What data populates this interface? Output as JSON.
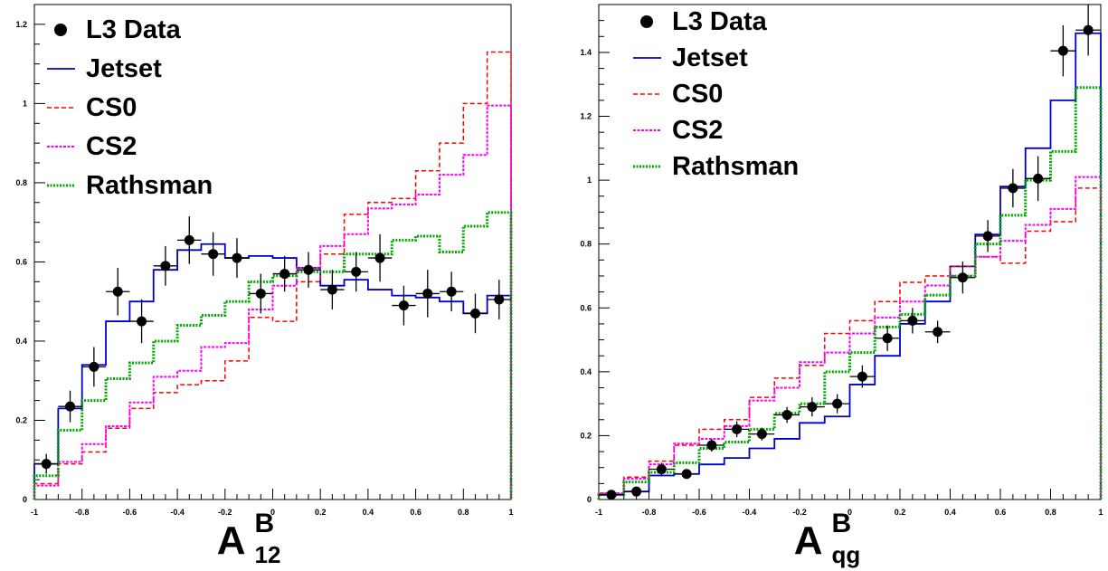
{
  "legend_names": {
    "data": "L3 Data",
    "jetset": "Jetset",
    "cs0": "CS0",
    "cs2": "CS2",
    "rathsman": "Rathsman"
  },
  "styles": {
    "data": "#000000",
    "jetset": "#0000cc",
    "cs0": "#ff0000",
    "cs2": "#ff00ff",
    "rathsman": "#00aa00"
  },
  "chart_data": [
    {
      "type": "line",
      "title": "",
      "xlabel": {
        "main": "A",
        "sup": "B",
        "sub": "12"
      },
      "xlim": [
        -1,
        1
      ],
      "ylim": [
        0,
        1.25
      ],
      "x_ticks": [
        -1,
        -0.8,
        -0.6,
        -0.4,
        -0.2,
        0,
        0.2,
        0.4,
        0.6,
        0.8,
        1
      ],
      "x_tick_labels": [
        "-1",
        "-0.8",
        "-0.6",
        "-0.4",
        "-0.2",
        "0",
        "0.2",
        "0.4",
        "0.6",
        "0.8",
        "1"
      ],
      "y_ticks": [
        0,
        0.2,
        0.4,
        0.6,
        0.8,
        1,
        1.2
      ],
      "y_tick_labels": [
        "0",
        "0.2",
        "0.4",
        "0.6",
        "0.8",
        "1",
        "1.2"
      ],
      "legend_position": "top-left",
      "bin_edges": [
        -1,
        -0.9,
        -0.8,
        -0.7,
        -0.6,
        -0.5,
        -0.4,
        -0.3,
        -0.2,
        -0.1,
        0,
        0.1,
        0.2,
        0.3,
        0.4,
        0.5,
        0.6,
        0.7,
        0.8,
        0.9,
        1
      ],
      "series": [
        {
          "name": "Jetset",
          "key": "jetset",
          "values": [
            0.09,
            0.23,
            0.34,
            0.45,
            0.5,
            0.58,
            0.63,
            0.645,
            0.61,
            0.615,
            0.61,
            0.585,
            0.54,
            0.555,
            0.53,
            0.515,
            0.51,
            0.5,
            0.47,
            0.515
          ]
        },
        {
          "name": "CS0",
          "key": "cs0",
          "values": [
            0.04,
            0.09,
            0.12,
            0.18,
            0.23,
            0.27,
            0.29,
            0.3,
            0.35,
            0.46,
            0.45,
            0.55,
            0.62,
            0.72,
            0.75,
            0.76,
            0.83,
            0.9,
            1.0,
            1.13
          ]
        },
        {
          "name": "CS2",
          "key": "cs2",
          "values": [
            0.035,
            0.095,
            0.14,
            0.185,
            0.245,
            0.31,
            0.325,
            0.385,
            0.395,
            0.48,
            0.54,
            0.585,
            0.64,
            0.67,
            0.735,
            0.745,
            0.77,
            0.82,
            0.87,
            0.995
          ]
        },
        {
          "name": "Rathsman",
          "key": "rathsman",
          "values": [
            0.06,
            0.175,
            0.25,
            0.305,
            0.345,
            0.4,
            0.44,
            0.465,
            0.5,
            0.55,
            0.565,
            0.575,
            0.575,
            0.62,
            0.62,
            0.655,
            0.665,
            0.625,
            0.69,
            0.725
          ]
        }
      ],
      "data_points": {
        "name": "L3 Data",
        "x": [
          -0.95,
          -0.85,
          -0.75,
          -0.65,
          -0.55,
          -0.45,
          -0.35,
          -0.25,
          -0.15,
          -0.05,
          0.05,
          0.15,
          0.25,
          0.35,
          0.45,
          0.55,
          0.65,
          0.75,
          0.85,
          0.95
        ],
        "y": [
          0.09,
          0.235,
          0.335,
          0.525,
          0.45,
          0.59,
          0.655,
          0.62,
          0.61,
          0.52,
          0.57,
          0.58,
          0.53,
          0.575,
          0.61,
          0.49,
          0.52,
          0.525,
          0.47,
          0.505
        ],
        "err": [
          0.025,
          0.04,
          0.05,
          0.06,
          0.055,
          0.05,
          0.06,
          0.055,
          0.05,
          0.05,
          0.045,
          0.045,
          0.05,
          0.05,
          0.06,
          0.05,
          0.06,
          0.05,
          0.05,
          0.05
        ]
      }
    },
    {
      "type": "line",
      "title": "",
      "xlabel": {
        "main": "A",
        "sup": "B",
        "sub": "qg"
      },
      "xlim": [
        -1,
        1
      ],
      "ylim": [
        0,
        1.55
      ],
      "x_ticks": [
        -1,
        -0.8,
        -0.6,
        -0.4,
        -0.2,
        0,
        0.2,
        0.4,
        0.6,
        0.8,
        1
      ],
      "x_tick_labels": [
        "-1",
        "-0.8",
        "-0.6",
        "-0.4",
        "-0.2",
        "0",
        "0.2",
        "0.4",
        "0.6",
        "0.8",
        "1"
      ],
      "y_ticks": [
        0,
        0.2,
        0.4,
        0.6,
        0.8,
        1,
        1.2,
        1.4
      ],
      "y_tick_labels": [
        "0",
        "0.2",
        "0.4",
        "0.6",
        "0.8",
        "1",
        "1.2",
        "1.4"
      ],
      "legend_position": "top-left",
      "bin_edges": [
        -1,
        -0.9,
        -0.8,
        -0.7,
        -0.6,
        -0.5,
        -0.4,
        -0.3,
        -0.2,
        -0.1,
        0,
        0.1,
        0.2,
        0.3,
        0.4,
        0.5,
        0.6,
        0.7,
        0.8,
        0.9,
        1
      ],
      "series": [
        {
          "name": "Jetset",
          "key": "jetset",
          "values": [
            0.015,
            0.025,
            0.075,
            0.08,
            0.11,
            0.13,
            0.16,
            0.19,
            0.24,
            0.26,
            0.36,
            0.45,
            0.55,
            0.62,
            0.73,
            0.83,
            0.98,
            1.1,
            1.25,
            1.46
          ]
        },
        {
          "name": "CS0",
          "key": "cs0",
          "values": [
            0.02,
            0.07,
            0.12,
            0.17,
            0.22,
            0.25,
            0.32,
            0.38,
            0.42,
            0.52,
            0.56,
            0.62,
            0.68,
            0.7,
            0.73,
            0.76,
            0.74,
            0.84,
            0.87,
            0.975
          ]
        },
        {
          "name": "CS2",
          "key": "cs2",
          "values": [
            0.02,
            0.065,
            0.11,
            0.175,
            0.19,
            0.23,
            0.31,
            0.35,
            0.43,
            0.46,
            0.52,
            0.57,
            0.62,
            0.67,
            0.7,
            0.76,
            0.81,
            0.86,
            0.91,
            1.01
          ]
        },
        {
          "name": "Rathsman",
          "key": "rathsman",
          "values": [
            0.015,
            0.055,
            0.085,
            0.115,
            0.16,
            0.18,
            0.22,
            0.27,
            0.3,
            0.4,
            0.46,
            0.54,
            0.58,
            0.64,
            0.7,
            0.8,
            0.89,
            1.0,
            1.09,
            1.29
          ]
        }
      ],
      "data_points": {
        "name": "L3 Data",
        "x": [
          -0.95,
          -0.85,
          -0.75,
          -0.65,
          -0.55,
          -0.45,
          -0.35,
          -0.25,
          -0.15,
          -0.05,
          0.05,
          0.15,
          0.25,
          0.35,
          0.45,
          0.55,
          0.65,
          0.75,
          0.85,
          0.95
        ],
        "y": [
          0.015,
          0.025,
          0.095,
          0.08,
          0.17,
          0.22,
          0.205,
          0.265,
          0.29,
          0.3,
          0.385,
          0.505,
          0.56,
          0.525,
          0.695,
          0.825,
          0.975,
          1.005,
          1.405,
          1.47
        ],
        "err": [
          0.01,
          0.015,
          0.02,
          0.015,
          0.02,
          0.025,
          0.02,
          0.025,
          0.03,
          0.03,
          0.035,
          0.04,
          0.04,
          0.035,
          0.05,
          0.05,
          0.06,
          0.07,
          0.08,
          0.08
        ]
      }
    }
  ]
}
